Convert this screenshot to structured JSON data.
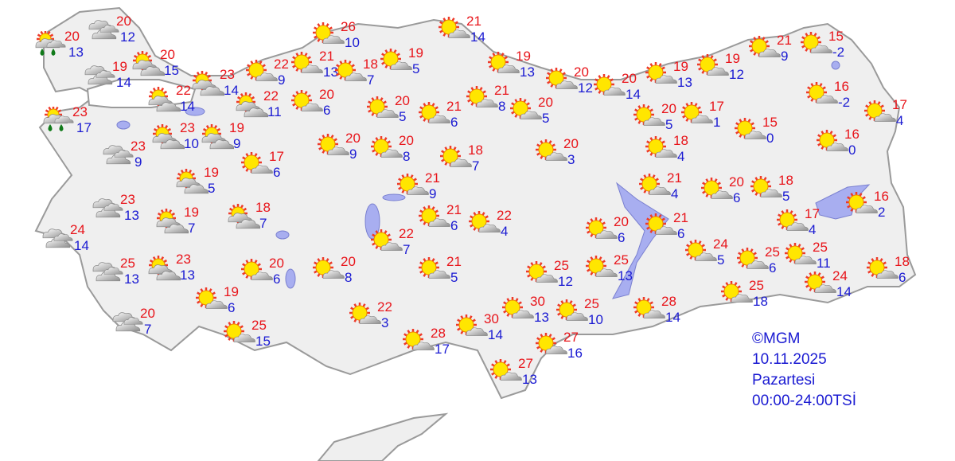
{
  "colors": {
    "max_temp": "#e8141a",
    "min_temp": "#1a1ad2",
    "land": "#efefef",
    "border": "#9a9a9a",
    "water": "#a8aef0",
    "sun": "#ffe600",
    "rays": "#ee3a2a",
    "rain": "#117a1a"
  },
  "legend": {
    "copyright": "©MGM",
    "date": "10.11.2025",
    "day": "Pazartesi",
    "period": "00:00-24:00TSİ"
  },
  "stations": [
    {
      "max": "20",
      "min": "13",
      "icon": "rain"
    },
    {
      "max": "20",
      "min": "12",
      "icon": "cloudy"
    },
    {
      "max": "19",
      "min": "14",
      "icon": "cloudy"
    },
    {
      "max": "20",
      "min": "15",
      "icon": "partly-cloudy"
    },
    {
      "max": "23",
      "min": "17",
      "icon": "rain"
    },
    {
      "max": "22",
      "min": "14",
      "icon": "partly-cloudy"
    },
    {
      "max": "23",
      "min": "14",
      "icon": "partly-cloudy"
    },
    {
      "max": "23",
      "min": "9",
      "icon": "cloudy"
    },
    {
      "max": "23",
      "min": "10",
      "icon": "partly-cloudy"
    },
    {
      "max": "19",
      "min": "9",
      "icon": "partly-cloudy"
    },
    {
      "max": "19",
      "min": "5",
      "icon": "partly-cloudy"
    },
    {
      "max": "17",
      "min": "6",
      "icon": "mostly-sunny"
    },
    {
      "max": "22",
      "min": "11",
      "icon": "partly-cloudy"
    },
    {
      "max": "22",
      "min": "9",
      "icon": "mostly-sunny"
    },
    {
      "max": "21",
      "min": "13",
      "icon": "mostly-sunny"
    },
    {
      "max": "20",
      "min": "6",
      "icon": "mostly-sunny"
    },
    {
      "max": "26",
      "min": "10",
      "icon": "mostly-sunny"
    },
    {
      "max": "18",
      "min": "7",
      "icon": "mostly-sunny"
    },
    {
      "max": "19",
      "min": "5",
      "icon": "mostly-sunny"
    },
    {
      "max": "20",
      "min": "5",
      "icon": "mostly-sunny"
    },
    {
      "max": "21",
      "min": "14",
      "icon": "mostly-sunny"
    },
    {
      "max": "21",
      "min": "6",
      "icon": "mostly-sunny"
    },
    {
      "max": "21",
      "min": "8",
      "icon": "mostly-sunny"
    },
    {
      "max": "19",
      "min": "13",
      "icon": "mostly-sunny"
    },
    {
      "max": "20",
      "min": "5",
      "icon": "mostly-sunny"
    },
    {
      "max": "20",
      "min": "12",
      "icon": "mostly-sunny"
    },
    {
      "max": "20",
      "min": "14",
      "icon": "mostly-sunny"
    },
    {
      "max": "19",
      "min": "13",
      "icon": "mostly-sunny"
    },
    {
      "max": "19",
      "min": "12",
      "icon": "mostly-sunny"
    },
    {
      "max": "21",
      "min": "9",
      "icon": "mostly-sunny"
    },
    {
      "max": "15",
      "min": "-2",
      "icon": "mostly-sunny"
    },
    {
      "max": "16",
      "min": "-2",
      "icon": "mostly-sunny"
    },
    {
      "max": "17",
      "min": "4",
      "icon": "mostly-sunny"
    },
    {
      "max": "20",
      "min": "5",
      "icon": "mostly-sunny"
    },
    {
      "max": "17",
      "min": "1",
      "icon": "mostly-sunny"
    },
    {
      "max": "15",
      "min": "0",
      "icon": "mostly-sunny"
    },
    {
      "max": "16",
      "min": "0",
      "icon": "mostly-sunny"
    },
    {
      "max": "18",
      "min": "4",
      "icon": "mostly-sunny"
    },
    {
      "max": "20",
      "min": "9",
      "icon": "mostly-sunny"
    },
    {
      "max": "20",
      "min": "8",
      "icon": "mostly-sunny"
    },
    {
      "max": "18",
      "min": "7",
      "icon": "mostly-sunny"
    },
    {
      "max": "20",
      "min": "3",
      "icon": "mostly-sunny"
    },
    {
      "max": "21",
      "min": "9",
      "icon": "mostly-sunny"
    },
    {
      "max": "21",
      "min": "4",
      "icon": "mostly-sunny"
    },
    {
      "max": "20",
      "min": "6",
      "icon": "mostly-sunny"
    },
    {
      "max": "18",
      "min": "5",
      "icon": "mostly-sunny"
    },
    {
      "max": "16",
      "min": "2",
      "icon": "mostly-sunny"
    },
    {
      "max": "21",
      "min": "6",
      "icon": "mostly-sunny"
    },
    {
      "max": "22",
      "min": "4",
      "icon": "mostly-sunny"
    },
    {
      "max": "22",
      "min": "7",
      "icon": "mostly-sunny"
    },
    {
      "max": "20",
      "min": "6",
      "icon": "mostly-sunny"
    },
    {
      "max": "21",
      "min": "6",
      "icon": "mostly-sunny"
    },
    {
      "max": "17",
      "min": "4",
      "icon": "mostly-sunny"
    },
    {
      "max": "24",
      "min": "5",
      "icon": "mostly-sunny"
    },
    {
      "max": "25",
      "min": "6",
      "icon": "mostly-sunny"
    },
    {
      "max": "25",
      "min": "11",
      "icon": "mostly-sunny"
    },
    {
      "max": "18",
      "min": "6",
      "icon": "mostly-sunny"
    },
    {
      "max": "25",
      "min": "18",
      "icon": "mostly-sunny"
    },
    {
      "max": "24",
      "min": "14",
      "icon": "mostly-sunny"
    },
    {
      "max": "23",
      "min": "13",
      "icon": "cloudy"
    },
    {
      "max": "19",
      "min": "7",
      "icon": "partly-cloudy"
    },
    {
      "max": "18",
      "min": "7",
      "icon": "partly-cloudy"
    },
    {
      "max": "24",
      "min": "14",
      "icon": "cloudy"
    },
    {
      "max": "25",
      "min": "13",
      "icon": "cloudy"
    },
    {
      "max": "23",
      "min": "13",
      "icon": "partly-cloudy"
    },
    {
      "max": "20",
      "min": "6",
      "icon": "mostly-sunny"
    },
    {
      "max": "20",
      "min": "8",
      "icon": "mostly-sunny"
    },
    {
      "max": "21",
      "min": "5",
      "icon": "mostly-sunny"
    },
    {
      "max": "25",
      "min": "12",
      "icon": "mostly-sunny"
    },
    {
      "max": "25",
      "min": "13",
      "icon": "mostly-sunny"
    },
    {
      "max": "19",
      "min": "6",
      "icon": "mostly-sunny"
    },
    {
      "max": "20",
      "min": "7",
      "icon": "cloudy"
    },
    {
      "max": "25",
      "min": "15",
      "icon": "mostly-sunny"
    },
    {
      "max": "22",
      "min": "3",
      "icon": "mostly-sunny"
    },
    {
      "max": "28",
      "min": "17",
      "icon": "mostly-sunny"
    },
    {
      "max": "30",
      "min": "14",
      "icon": "mostly-sunny"
    },
    {
      "max": "30",
      "min": "13",
      "icon": "mostly-sunny"
    },
    {
      "max": "25",
      "min": "10",
      "icon": "mostly-sunny"
    },
    {
      "max": "28",
      "min": "14",
      "icon": "mostly-sunny"
    },
    {
      "max": "27",
      "min": "16",
      "icon": "mostly-sunny"
    },
    {
      "max": "27",
      "min": "13",
      "icon": "mostly-sunny"
    }
  ]
}
